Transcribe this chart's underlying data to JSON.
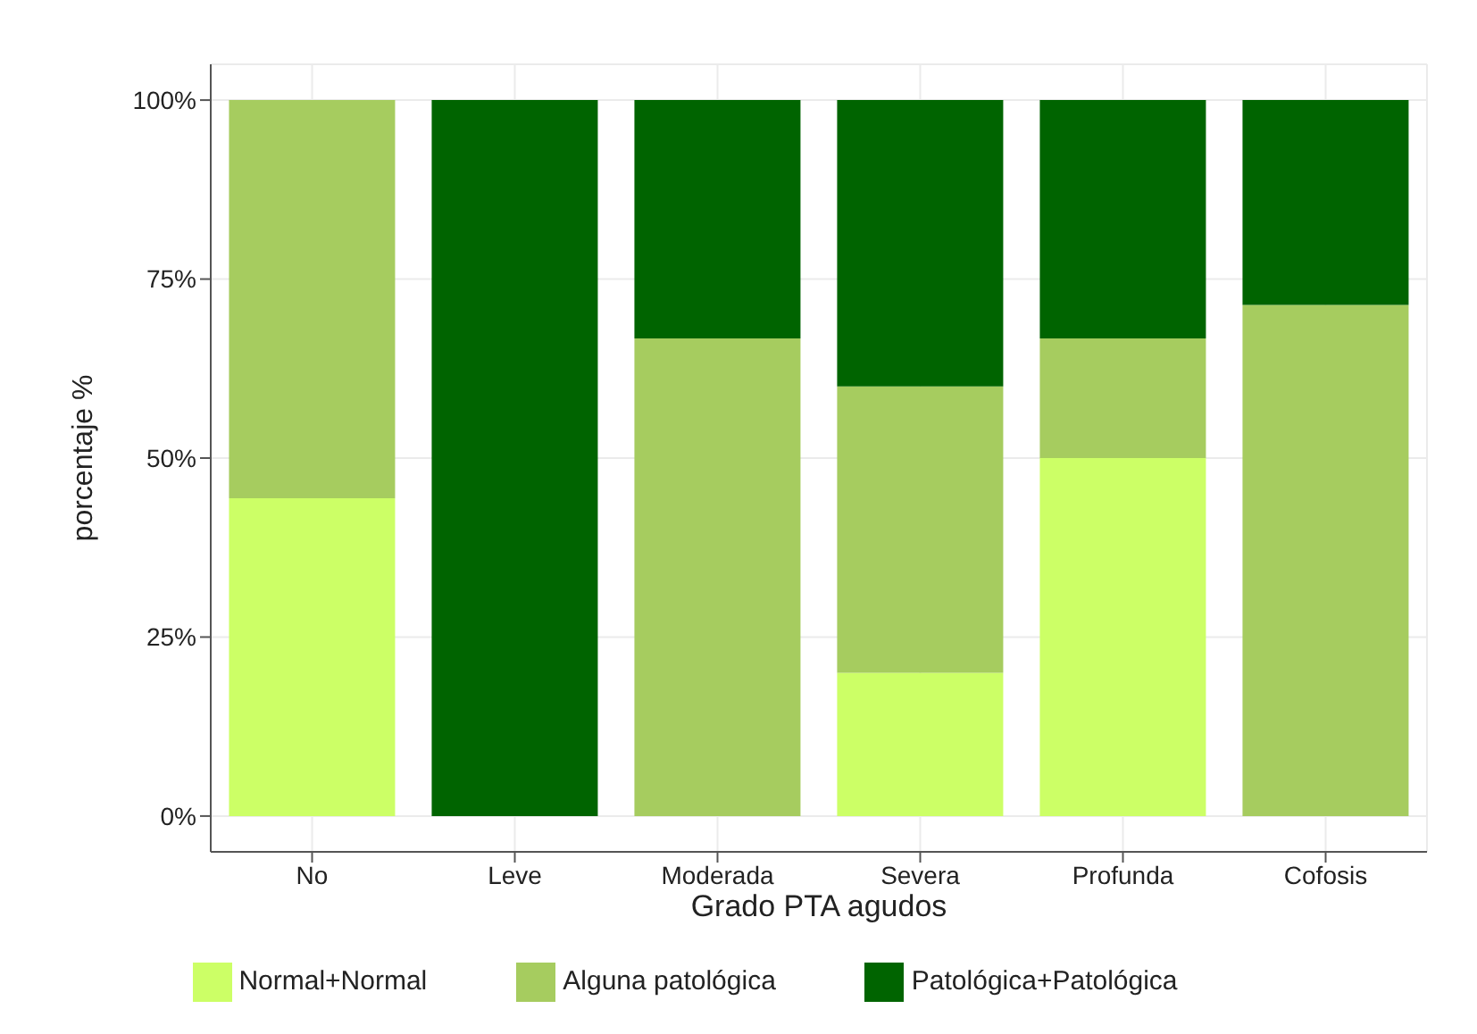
{
  "chart_data": {
    "type": "bar",
    "stacked": true,
    "xlabel": "Grado PTA agudos",
    "ylabel": "porcentaje %",
    "categories": [
      "No",
      "Leve",
      "Moderada",
      "Severa",
      "Profunda",
      "Cofosis"
    ],
    "series": [
      {
        "name": "Normal+Normal",
        "color": "#ccff66",
        "values": [
          44.4,
          0,
          0,
          20,
          50,
          0
        ]
      },
      {
        "name": "Alguna patológica",
        "color": "#a6cc5f",
        "values": [
          55.6,
          0,
          66.7,
          40,
          16.7,
          71.4
        ]
      },
      {
        "name": "Patológica+Patológica",
        "color": "#006400",
        "values": [
          0,
          100,
          33.3,
          40,
          33.3,
          28.6
        ]
      }
    ],
    "ylim": [
      -5,
      105
    ],
    "yticks": [
      {
        "value": 0,
        "label": "0%"
      },
      {
        "value": 25,
        "label": "25%"
      },
      {
        "value": 50,
        "label": "50%"
      },
      {
        "value": 75,
        "label": "75%"
      },
      {
        "value": 100,
        "label": "100%"
      }
    ],
    "grid": true,
    "legend": "bottom"
  }
}
